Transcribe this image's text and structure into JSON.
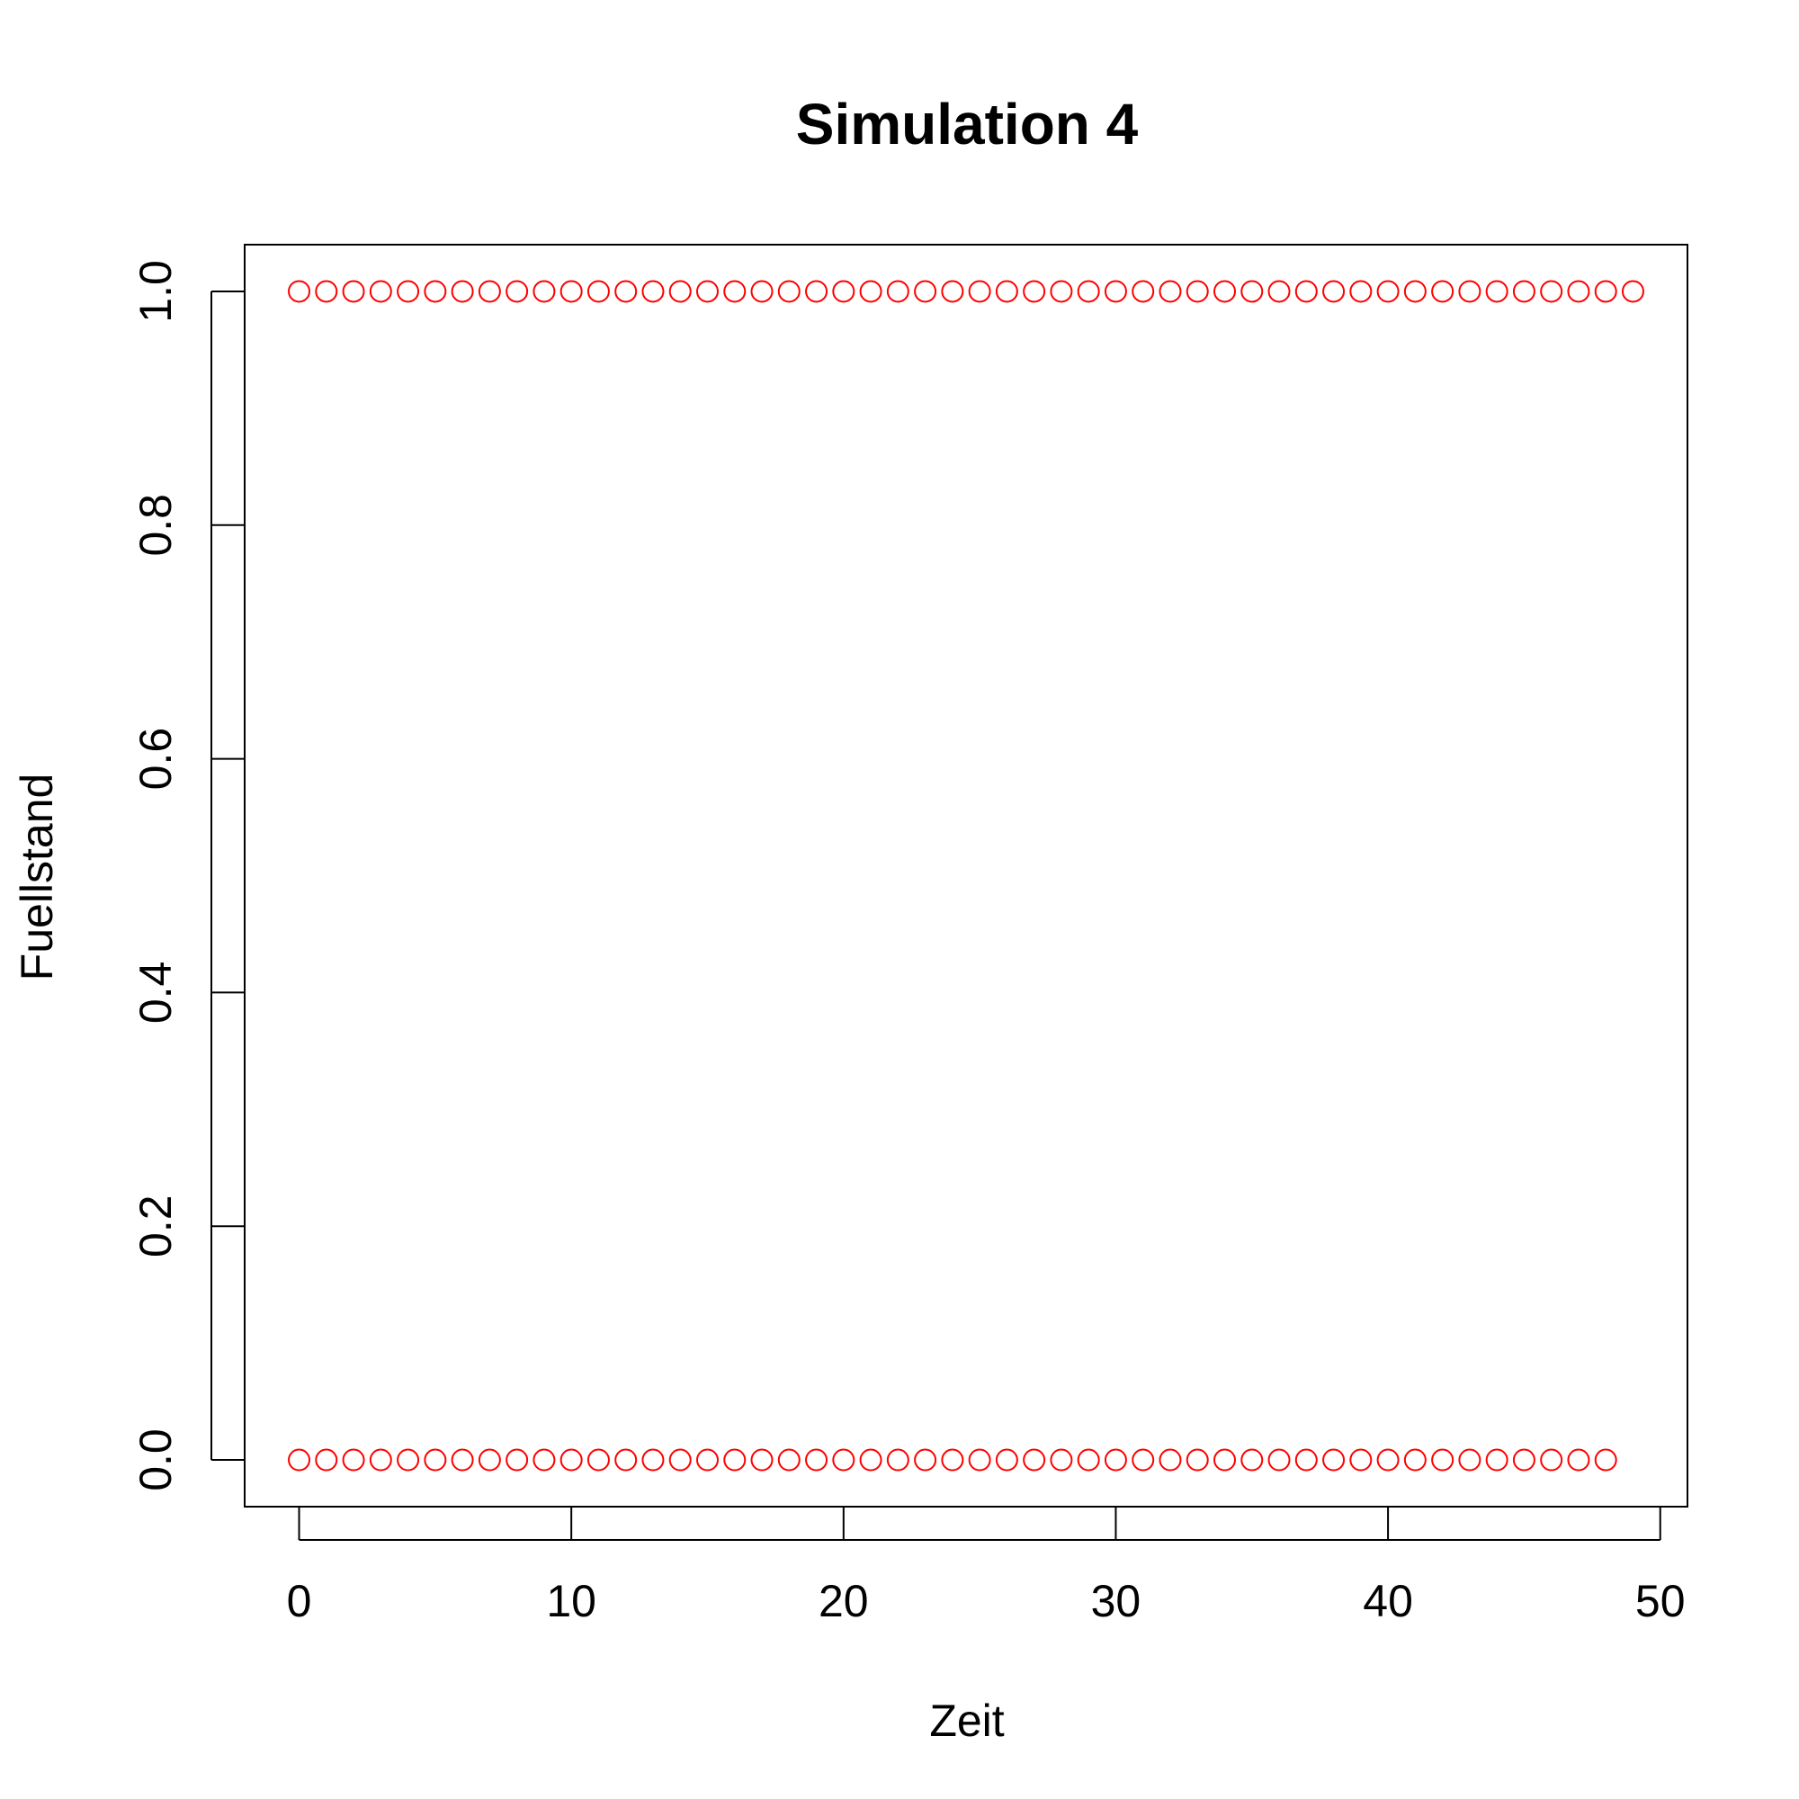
{
  "chart_data": {
    "type": "scatter",
    "title": "Simulation 4",
    "xlabel": "Zeit",
    "ylabel": "Fuellstand",
    "xlim": [
      -2,
      51
    ],
    "ylim": [
      -0.04,
      1.04
    ],
    "x_ticks": [
      "0",
      "10",
      "20",
      "30",
      "40",
      "50"
    ],
    "y_ticks": [
      "0.0",
      "0.2",
      "0.4",
      "0.6",
      "0.8",
      "1.0"
    ],
    "grid": false,
    "legend": "none",
    "marker": "open-circle",
    "point_color": "#ff0000",
    "series": [
      {
        "points": [
          [
            0,
            1
          ],
          [
            1,
            1
          ],
          [
            2,
            1
          ],
          [
            3,
            1
          ],
          [
            4,
            1
          ],
          [
            5,
            1
          ],
          [
            6,
            1
          ],
          [
            7,
            1
          ],
          [
            8,
            1
          ],
          [
            9,
            1
          ],
          [
            10,
            1
          ],
          [
            11,
            1
          ],
          [
            12,
            1
          ],
          [
            13,
            1
          ],
          [
            14,
            1
          ],
          [
            15,
            1
          ],
          [
            16,
            1
          ],
          [
            17,
            1
          ],
          [
            18,
            1
          ],
          [
            19,
            1
          ],
          [
            20,
            1
          ],
          [
            21,
            1
          ],
          [
            22,
            1
          ],
          [
            23,
            1
          ],
          [
            24,
            1
          ],
          [
            25,
            1
          ],
          [
            26,
            1
          ],
          [
            27,
            1
          ],
          [
            28,
            1
          ],
          [
            29,
            1
          ],
          [
            30,
            1
          ],
          [
            31,
            1
          ],
          [
            32,
            1
          ],
          [
            33,
            1
          ],
          [
            34,
            1
          ],
          [
            35,
            1
          ],
          [
            36,
            1
          ],
          [
            37,
            1
          ],
          [
            38,
            1
          ],
          [
            39,
            1
          ],
          [
            40,
            1
          ],
          [
            41,
            1
          ],
          [
            42,
            1
          ],
          [
            43,
            1
          ],
          [
            44,
            1
          ],
          [
            45,
            1
          ],
          [
            46,
            1
          ],
          [
            47,
            1
          ],
          [
            48,
            1
          ],
          [
            49,
            1
          ],
          [
            0,
            0
          ],
          [
            1,
            0
          ],
          [
            2,
            0
          ],
          [
            3,
            0
          ],
          [
            4,
            0
          ],
          [
            5,
            0
          ],
          [
            6,
            0
          ],
          [
            7,
            0
          ],
          [
            8,
            0
          ],
          [
            9,
            0
          ],
          [
            10,
            0
          ],
          [
            11,
            0
          ],
          [
            12,
            0
          ],
          [
            13,
            0
          ],
          [
            14,
            0
          ],
          [
            15,
            0
          ],
          [
            16,
            0
          ],
          [
            17,
            0
          ],
          [
            18,
            0
          ],
          [
            19,
            0
          ],
          [
            20,
            0
          ],
          [
            21,
            0
          ],
          [
            22,
            0
          ],
          [
            23,
            0
          ],
          [
            24,
            0
          ],
          [
            25,
            0
          ],
          [
            26,
            0
          ],
          [
            27,
            0
          ],
          [
            28,
            0
          ],
          [
            29,
            0
          ],
          [
            30,
            0
          ],
          [
            31,
            0
          ],
          [
            32,
            0
          ],
          [
            33,
            0
          ],
          [
            34,
            0
          ],
          [
            35,
            0
          ],
          [
            36,
            0
          ],
          [
            37,
            0
          ],
          [
            38,
            0
          ],
          [
            39,
            0
          ],
          [
            40,
            0
          ],
          [
            41,
            0
          ],
          [
            42,
            0
          ],
          [
            43,
            0
          ],
          [
            44,
            0
          ],
          [
            45,
            0
          ],
          [
            46,
            0
          ],
          [
            47,
            0
          ],
          [
            48,
            0
          ]
        ]
      }
    ]
  }
}
